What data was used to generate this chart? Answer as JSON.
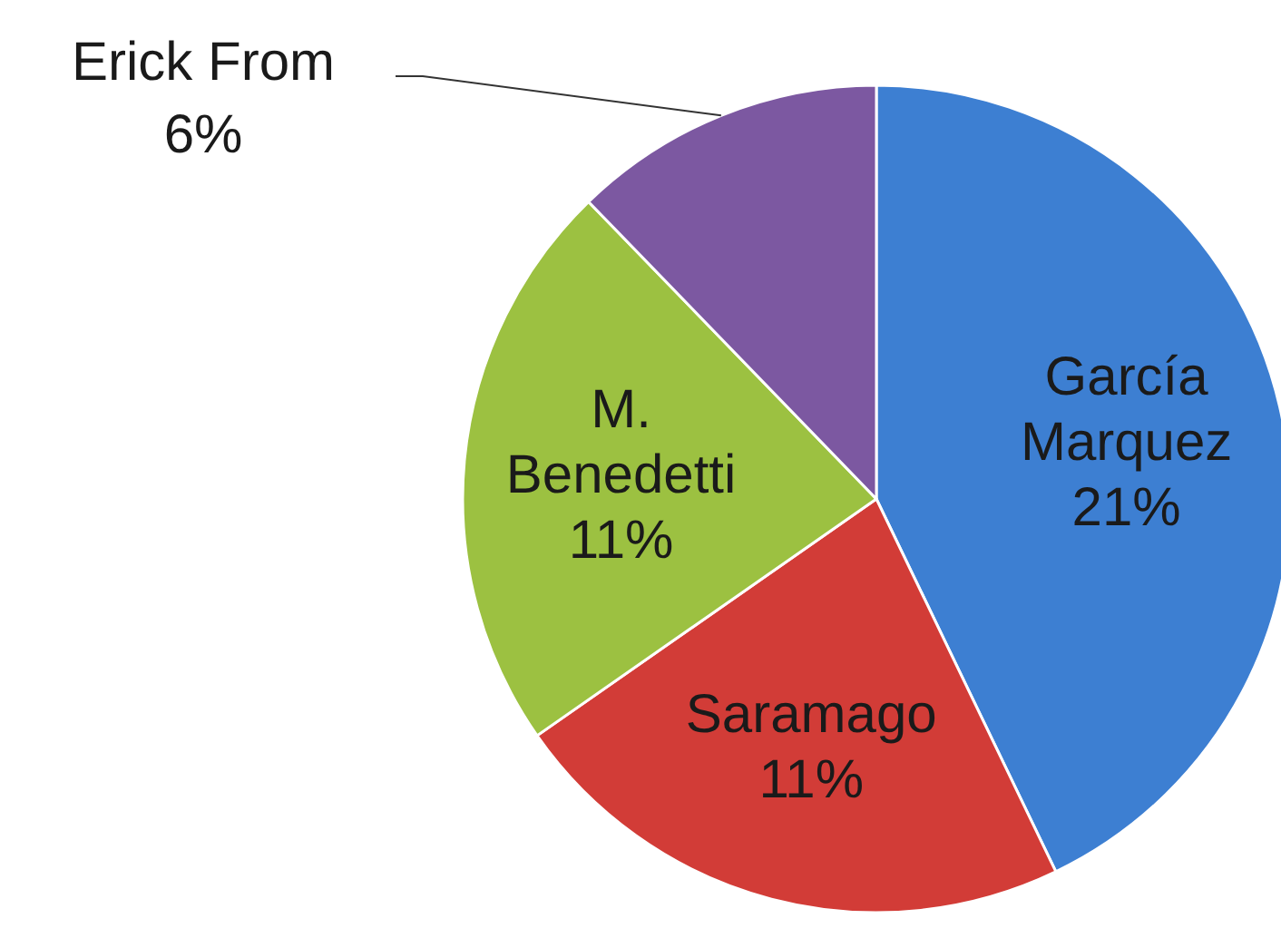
{
  "chart_data": {
    "type": "pie",
    "categories": [
      "García Marquez",
      "Saramago",
      "M. Benedetti",
      "Erick From"
    ],
    "values": [
      21,
      11,
      11,
      6
    ],
    "value_labels": [
      "21%",
      "11%",
      "11%",
      "6%"
    ],
    "colors": [
      "#3d7fd2",
      "#d23c37",
      "#9cc141",
      "#7c58a1"
    ]
  }
}
